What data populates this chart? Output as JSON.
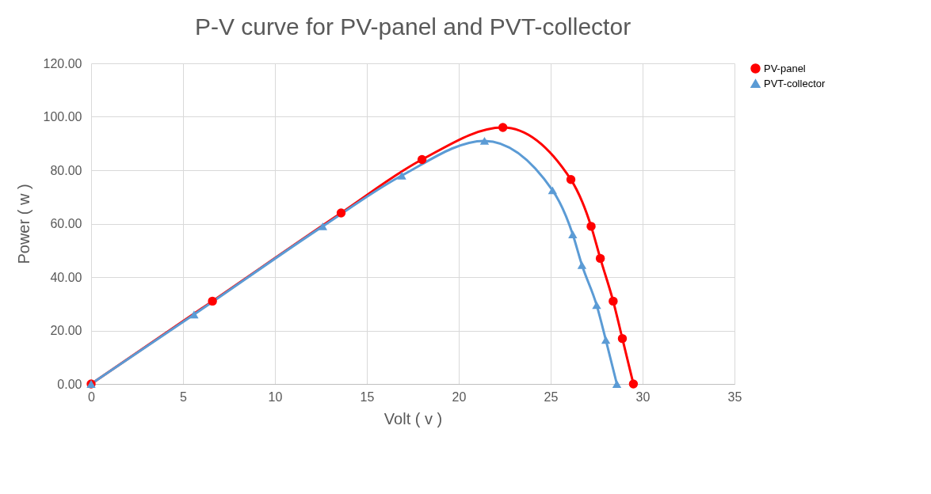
{
  "chart_data": {
    "type": "line",
    "title": "P-V curve for PV-panel and PVT-collector",
    "xlabel": "Volt ( v )",
    "ylabel": "Power ( w )",
    "xlim": [
      0,
      35
    ],
    "xticks": [
      0,
      5,
      10,
      15,
      20,
      25,
      30,
      35
    ],
    "ylim": [
      0,
      120
    ],
    "yticks": [
      {
        "value": 0,
        "label": "0.00"
      },
      {
        "value": 20,
        "label": "20.00"
      },
      {
        "value": 40,
        "label": "40.00"
      },
      {
        "value": 60,
        "label": "60.00"
      },
      {
        "value": 80,
        "label": "80.00"
      },
      {
        "value": 100,
        "label": "100.00"
      },
      {
        "value": 120,
        "label": "120.00"
      }
    ],
    "grid": true,
    "legend": "right",
    "line_style": "solid",
    "series": [
      {
        "name": "PV-panel",
        "color": "#ff0000",
        "marker": "circle",
        "x": [
          0,
          6.6,
          13.6,
          18.0,
          22.4,
          26.1,
          27.2,
          27.7,
          28.4,
          28.9,
          29.5
        ],
        "values": [
          0,
          31,
          64,
          84,
          96,
          76.5,
          59,
          47,
          31,
          17,
          0
        ]
      },
      {
        "name": "PVT-collector",
        "color": "#5b9bd5",
        "marker": "triangle",
        "x": [
          0,
          5.6,
          12.6,
          16.9,
          21.4,
          25.1,
          26.2,
          26.7,
          27.5,
          28.0,
          28.6
        ],
        "values": [
          0,
          26,
          59,
          78,
          91,
          72.5,
          56,
          44.5,
          29.5,
          16.5,
          0
        ]
      }
    ]
  }
}
